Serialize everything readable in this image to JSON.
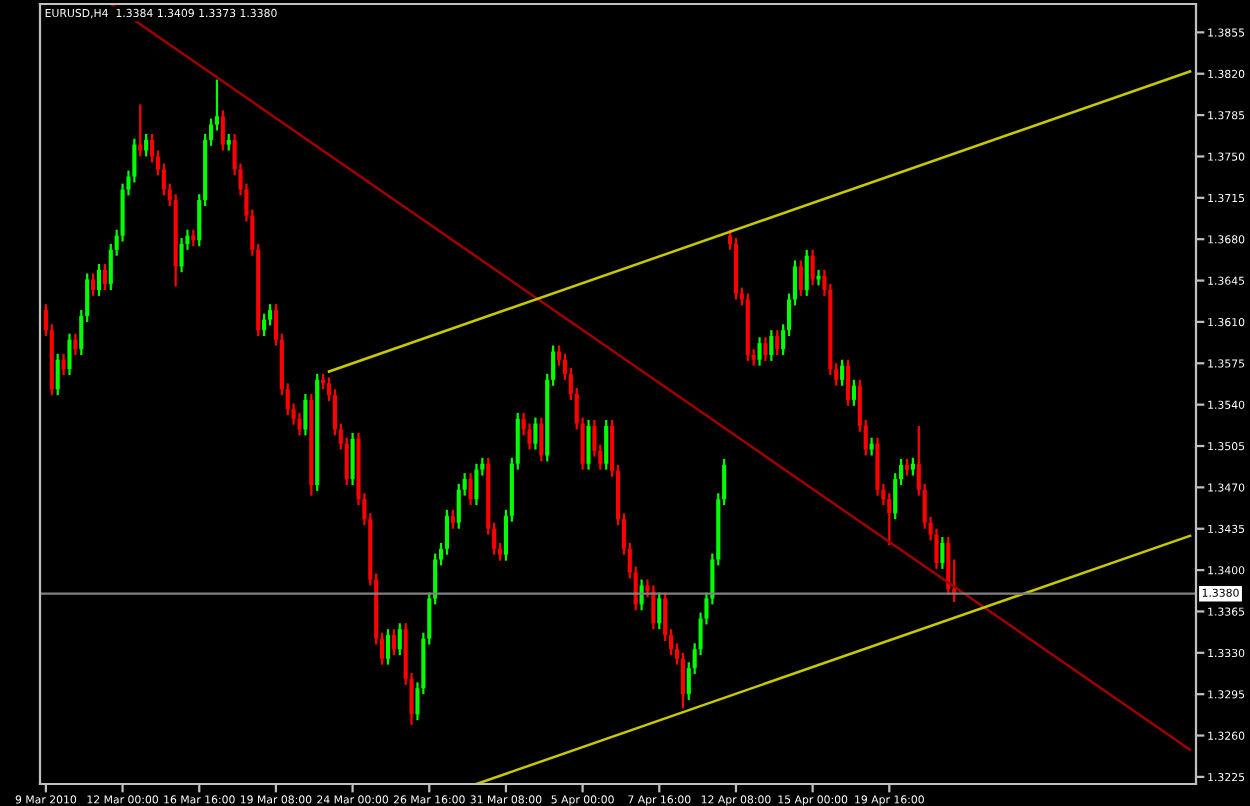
{
  "chart_data": {
    "type": "candlestick",
    "title": "EURUSD,H4  1.3384 1.3409 1.3373 1.3380",
    "categories": [
      "9 Mar 2010",
      null,
      null,
      null,
      null,
      null,
      null,
      null,
      null,
      null,
      null,
      null,
      null,
      "12 Mar 00:00",
      null,
      null,
      null,
      null,
      null,
      null,
      null,
      null,
      null,
      null,
      null,
      null,
      "16 Mar 16:00",
      null,
      null,
      null,
      null,
      null,
      null,
      null,
      null,
      null,
      null,
      null,
      null,
      "19 Mar 08:00",
      null,
      null,
      null,
      null,
      null,
      null,
      null,
      null,
      null,
      null,
      null,
      null,
      "24 Mar 00:00",
      null,
      null,
      null,
      null,
      null,
      null,
      null,
      null,
      null,
      null,
      null,
      null,
      "26 Mar 16:00",
      null,
      null,
      null,
      null,
      null,
      null,
      null,
      null,
      null,
      null,
      null,
      null,
      "31 Mar 08:00",
      null,
      null,
      null,
      null,
      null,
      null,
      null,
      null,
      null,
      null,
      null,
      null,
      "5 Apr 00:00",
      null,
      null,
      null,
      null,
      null,
      null,
      null,
      null,
      null,
      null,
      null,
      null,
      "7 Apr 16:00",
      null,
      null,
      null,
      null,
      null,
      null,
      null,
      null,
      null,
      null,
      null,
      null,
      "12 Apr 08:00",
      null,
      null,
      null,
      null,
      null,
      null,
      null,
      null,
      null,
      null,
      null,
      null,
      "15 Apr 00:00",
      null,
      null,
      null,
      null,
      null,
      null,
      null,
      null,
      null,
      null,
      null,
      null,
      "19 Apr 16:00",
      null,
      null,
      null,
      null,
      null,
      null,
      null,
      null,
      null,
      null,
      null,
      null,
      null,
      null,
      null,
      null,
      null,
      null,
      null,
      null,
      null,
      null,
      null,
      null,
      null,
      null,
      null,
      null,
      null,
      null,
      null,
      null,
      null,
      null,
      null,
      null,
      null,
      null,
      null,
      null,
      null,
      null,
      null,
      null,
      null,
      null,
      null,
      null,
      null,
      null,
      null
    ],
    "ohlc": [
      [
        1.362,
        1.3625,
        1.3598,
        1.3603
      ],
      [
        1.3603,
        1.3608,
        1.3548,
        1.3553
      ],
      [
        1.3553,
        1.3583,
        1.3548,
        1.3578
      ],
      [
        1.3578,
        1.3583,
        1.3565,
        1.357
      ],
      [
        1.357,
        1.36,
        1.3565,
        1.3595
      ],
      [
        1.3595,
        1.36,
        1.3582,
        1.3587
      ],
      [
        1.3587,
        1.362,
        1.3582,
        1.3615
      ],
      [
        1.3615,
        1.3651,
        1.361,
        1.3646
      ],
      [
        1.3646,
        1.3651,
        1.3632,
        1.3637
      ],
      [
        1.3637,
        1.3659,
        1.3632,
        1.3654
      ],
      [
        1.3654,
        1.3659,
        1.3637,
        1.3642
      ],
      [
        1.3642,
        1.3676,
        1.3637,
        1.3671
      ],
      [
        1.3671,
        1.3688,
        1.3666,
        1.3683
      ],
      [
        1.3683,
        1.3727,
        1.3678,
        1.3722
      ],
      [
        1.3722,
        1.3738,
        1.3717,
        1.3733
      ],
      [
        1.3733,
        1.3765,
        1.3728,
        1.376
      ],
      [
        1.376,
        1.3794,
        1.375,
        1.3755
      ],
      [
        1.3755,
        1.3769,
        1.375,
        1.3764
      ],
      [
        1.3764,
        1.3769,
        1.3745,
        1.375
      ],
      [
        1.375,
        1.3755,
        1.3734,
        1.3739
      ],
      [
        1.3739,
        1.3744,
        1.3717,
        1.3722
      ],
      [
        1.3722,
        1.3727,
        1.3708,
        1.3713
      ],
      [
        1.3713,
        1.3718,
        1.364,
        1.3657
      ],
      [
        1.3657,
        1.3681,
        1.3652,
        1.3676
      ],
      [
        1.3676,
        1.3688,
        1.3671,
        1.3683
      ],
      [
        1.3683,
        1.3688,
        1.3674,
        1.3679
      ],
      [
        1.3679,
        1.3718,
        1.3674,
        1.3713
      ],
      [
        1.3713,
        1.3769,
        1.3708,
        1.3764
      ],
      [
        1.3764,
        1.3782,
        1.3759,
        1.3777
      ],
      [
        1.3777,
        1.3815,
        1.3772,
        1.3784
      ],
      [
        1.3784,
        1.3789,
        1.3755,
        1.376
      ],
      [
        1.376,
        1.3769,
        1.3755,
        1.3764
      ],
      [
        1.3764,
        1.3769,
        1.3734,
        1.3739
      ],
      [
        1.3739,
        1.3744,
        1.3717,
        1.3722
      ],
      [
        1.3722,
        1.3727,
        1.3695,
        1.37
      ],
      [
        1.37,
        1.3705,
        1.3666,
        1.3671
      ],
      [
        1.3671,
        1.3676,
        1.3598,
        1.3603
      ],
      [
        1.3603,
        1.3617,
        1.3598,
        1.3612
      ],
      [
        1.3612,
        1.3625,
        1.3607,
        1.362
      ],
      [
        1.362,
        1.3625,
        1.359,
        1.3595
      ],
      [
        1.3595,
        1.36,
        1.3548,
        1.3553
      ],
      [
        1.3553,
        1.3558,
        1.3531,
        1.3536
      ],
      [
        1.3536,
        1.3541,
        1.3523,
        1.3528
      ],
      [
        1.3528,
        1.3533,
        1.3514,
        1.3519
      ],
      [
        1.3519,
        1.3549,
        1.3514,
        1.3544
      ],
      [
        1.3544,
        1.3549,
        1.3463,
        1.3472
      ],
      [
        1.3472,
        1.3566,
        1.3467,
        1.3561
      ],
      [
        1.3561,
        1.3566,
        1.3553,
        1.3558
      ],
      [
        1.3558,
        1.3563,
        1.3543,
        1.3548
      ],
      [
        1.3548,
        1.3553,
        1.3514,
        1.3519
      ],
      [
        1.3519,
        1.3524,
        1.3502,
        1.3507
      ],
      [
        1.3507,
        1.3512,
        1.3472,
        1.3477
      ],
      [
        1.3477,
        1.3516,
        1.3472,
        1.3511
      ],
      [
        1.3511,
        1.3516,
        1.3455,
        1.346
      ],
      [
        1.346,
        1.3465,
        1.3438,
        1.3443
      ],
      [
        1.3443,
        1.3448,
        1.3387,
        1.3392
      ],
      [
        1.3392,
        1.3397,
        1.3337,
        1.3342
      ],
      [
        1.3342,
        1.3347,
        1.332,
        1.3325
      ],
      [
        1.3325,
        1.335,
        1.332,
        1.3345
      ],
      [
        1.3345,
        1.335,
        1.3328,
        1.3333
      ],
      [
        1.3333,
        1.3355,
        1.3328,
        1.335
      ],
      [
        1.335,
        1.3355,
        1.3303,
        1.3308
      ],
      [
        1.3308,
        1.3313,
        1.3269,
        1.3278
      ],
      [
        1.3278,
        1.3305,
        1.3273,
        1.33
      ],
      [
        1.33,
        1.3347,
        1.3295,
        1.3342
      ],
      [
        1.3342,
        1.3381,
        1.3337,
        1.3376
      ],
      [
        1.3376,
        1.3414,
        1.3371,
        1.3409
      ],
      [
        1.3409,
        1.3423,
        1.3404,
        1.3418
      ],
      [
        1.3418,
        1.3451,
        1.3413,
        1.3446
      ],
      [
        1.3446,
        1.3451,
        1.3435,
        1.344
      ],
      [
        1.344,
        1.3473,
        1.3435,
        1.3468
      ],
      [
        1.3468,
        1.3482,
        1.3463,
        1.3477
      ],
      [
        1.3477,
        1.3482,
        1.3455,
        1.346
      ],
      [
        1.346,
        1.349,
        1.3455,
        1.3485
      ],
      [
        1.3485,
        1.3495,
        1.348,
        1.349
      ],
      [
        1.349,
        1.3495,
        1.343,
        1.3435
      ],
      [
        1.3435,
        1.344,
        1.3413,
        1.3418
      ],
      [
        1.3418,
        1.3423,
        1.3408,
        1.3413
      ],
      [
        1.3413,
        1.3451,
        1.3408,
        1.3446
      ],
      [
        1.3446,
        1.3495,
        1.3441,
        1.349
      ],
      [
        1.349,
        1.3533,
        1.3485,
        1.3528
      ],
      [
        1.3528,
        1.3533,
        1.3514,
        1.3519
      ],
      [
        1.3519,
        1.3524,
        1.3502,
        1.3507
      ],
      [
        1.3507,
        1.3529,
        1.3502,
        1.3524
      ],
      [
        1.3524,
        1.3529,
        1.3492,
        1.3497
      ],
      [
        1.3497,
        1.3566,
        1.3492,
        1.3561
      ],
      [
        1.3561,
        1.359,
        1.3556,
        1.3585
      ],
      [
        1.3585,
        1.359,
        1.3573,
        1.3578
      ],
      [
        1.3578,
        1.3583,
        1.3561,
        1.3566
      ],
      [
        1.3566,
        1.3571,
        1.3544,
        1.3549
      ],
      [
        1.3549,
        1.3554,
        1.3519,
        1.3524
      ],
      [
        1.3524,
        1.3529,
        1.3485,
        1.349
      ],
      [
        1.349,
        1.3527,
        1.3485,
        1.3522
      ],
      [
        1.3522,
        1.3527,
        1.3496,
        1.3501
      ],
      [
        1.3501,
        1.3506,
        1.3485,
        1.349
      ],
      [
        1.349,
        1.3527,
        1.3485,
        1.3522
      ],
      [
        1.3522,
        1.3527,
        1.3479,
        1.3484
      ],
      [
        1.3484,
        1.3489,
        1.3438,
        1.3443
      ],
      [
        1.3443,
        1.3448,
        1.3413,
        1.3418
      ],
      [
        1.3418,
        1.3423,
        1.3393,
        1.3398
      ],
      [
        1.3398,
        1.3403,
        1.3366,
        1.3371
      ],
      [
        1.3371,
        1.3392,
        1.3366,
        1.3387
      ],
      [
        1.3387,
        1.3392,
        1.3377,
        1.3382
      ],
      [
        1.3382,
        1.3387,
        1.335,
        1.3355
      ],
      [
        1.3355,
        1.3381,
        1.335,
        1.3376
      ],
      [
        1.3376,
        1.3381,
        1.334,
        1.3345
      ],
      [
        1.3345,
        1.335,
        1.3328,
        1.3333
      ],
      [
        1.3333,
        1.3338,
        1.332,
        1.3325
      ],
      [
        1.3325,
        1.333,
        1.3283,
        1.3295
      ],
      [
        1.3295,
        1.3322,
        1.329,
        1.3317
      ],
      [
        1.3317,
        1.3338,
        1.3312,
        1.3333
      ],
      [
        1.3333,
        1.3364,
        1.3328,
        1.3359
      ],
      [
        1.3359,
        1.3381,
        1.3354,
        1.3376
      ],
      [
        1.3376,
        1.3414,
        1.3371,
        1.3409
      ],
      [
        1.3409,
        1.3465,
        1.3404,
        1.346
      ],
      [
        1.346,
        1.3494,
        1.3455,
        1.3489
      ],
      [
        1.3683,
        1.3688,
        1.3671,
        1.3676
      ],
      [
        1.3676,
        1.3681,
        1.3629,
        1.3634
      ],
      [
        1.3634,
        1.3639,
        1.3624,
        1.3629
      ],
      [
        1.3629,
        1.3634,
        1.3577,
        1.3582
      ],
      [
        1.3582,
        1.3587,
        1.3573,
        1.3578
      ],
      [
        1.3578,
        1.3597,
        1.3573,
        1.3592
      ],
      [
        1.3592,
        1.3597,
        1.3577,
        1.3582
      ],
      [
        1.3582,
        1.3603,
        1.3577,
        1.3598
      ],
      [
        1.3598,
        1.3603,
        1.3582,
        1.3587
      ],
      [
        1.3587,
        1.3608,
        1.3582,
        1.3603
      ],
      [
        1.3603,
        1.3634,
        1.3598,
        1.3629
      ],
      [
        1.3629,
        1.3662,
        1.3624,
        1.3657
      ],
      [
        1.3657,
        1.3662,
        1.3632,
        1.3637
      ],
      [
        1.3637,
        1.3671,
        1.3632,
        1.3666
      ],
      [
        1.3666,
        1.3671,
        1.3641,
        1.3646
      ],
      [
        1.3646,
        1.3654,
        1.3641,
        1.3649
      ],
      [
        1.3649,
        1.3654,
        1.3632,
        1.3637
      ],
      [
        1.3637,
        1.3642,
        1.3565,
        1.357
      ],
      [
        1.357,
        1.3575,
        1.3556,
        1.3561
      ],
      [
        1.3561,
        1.3578,
        1.3556,
        1.3573
      ],
      [
        1.3573,
        1.3578,
        1.3539,
        1.3544
      ],
      [
        1.3544,
        1.3561,
        1.3539,
        1.3556
      ],
      [
        1.3556,
        1.3561,
        1.3517,
        1.3522
      ],
      [
        1.3522,
        1.3527,
        1.3497,
        1.3502
      ],
      [
        1.3502,
        1.3512,
        1.3497,
        1.3507
      ],
      [
        1.3507,
        1.3512,
        1.3463,
        1.3468
      ],
      [
        1.3468,
        1.3473,
        1.3455,
        1.346
      ],
      [
        1.346,
        1.3465,
        1.3421,
        1.3448
      ],
      [
        1.3448,
        1.3482,
        1.3443,
        1.3477
      ],
      [
        1.3477,
        1.3494,
        1.3472,
        1.3489
      ],
      [
        1.3489,
        1.3494,
        1.348,
        1.3485
      ],
      [
        1.3485,
        1.3495,
        1.348,
        1.349
      ],
      [
        1.349,
        1.3522,
        1.3463,
        1.3468
      ],
      [
        1.3468,
        1.3473,
        1.3435,
        1.344
      ],
      [
        1.344,
        1.3445,
        1.3425,
        1.343
      ],
      [
        1.343,
        1.3435,
        1.3401,
        1.3406
      ],
      [
        1.3406,
        1.3428,
        1.3401,
        1.3423
      ],
      [
        1.3423,
        1.3428,
        1.3379,
        1.3384
      ],
      [
        1.3384,
        1.3409,
        1.3373,
        1.338
      ],
      null,
      null,
      null,
      null,
      null,
      null,
      null,
      null,
      null,
      null,
      null,
      null,
      null,
      null,
      null,
      null,
      null,
      null,
      null,
      null,
      null,
      null,
      null,
      null,
      null,
      null,
      null,
      null,
      null,
      null,
      null,
      null,
      null,
      null,
      null,
      null,
      null,
      null,
      null,
      null
    ],
    "series": [
      {
        "type": "line",
        "color": "#a00000",
        "values": [
          null,
          null,
          null,
          null,
          null,
          null,
          null,
          null,
          null,
          null,
          null,
          1.3879,
          null,
          null,
          null,
          null,
          null,
          null,
          null,
          null,
          null,
          null,
          null,
          null,
          null,
          null,
          null,
          null,
          null,
          null,
          null,
          null,
          null,
          null,
          null,
          null,
          null,
          null,
          null,
          null,
          null,
          null,
          null,
          null,
          null,
          null,
          null,
          null,
          null,
          null,
          null,
          null,
          null,
          null,
          null,
          null,
          null,
          null,
          null,
          null,
          null,
          null,
          null,
          null,
          null,
          null,
          null,
          null,
          null,
          null,
          null,
          null,
          null,
          null,
          null,
          null,
          null,
          null,
          null,
          null,
          null,
          null,
          null,
          null,
          null,
          null,
          null,
          null,
          null,
          null,
          null,
          null,
          null,
          null,
          null,
          null,
          null,
          null,
          null,
          null,
          null,
          null,
          null,
          null,
          null,
          null,
          null,
          null,
          null,
          null,
          null,
          null,
          null,
          null,
          null,
          null,
          null,
          null,
          null,
          null,
          null,
          null,
          null,
          null,
          null,
          null,
          null,
          null,
          null,
          null,
          null,
          null,
          null,
          null,
          null,
          null,
          null,
          null,
          null,
          null,
          null,
          null,
          null,
          null,
          null,
          null,
          null,
          null,
          null,
          null,
          null,
          null,
          null,
          null,
          null,
          null,
          null,
          null,
          null,
          null,
          null,
          null,
          null,
          null,
          null,
          null,
          null,
          null,
          null,
          null,
          null,
          null,
          null,
          null,
          null,
          null,
          null,
          null,
          null,
          null,
          null,
          null,
          null,
          null,
          null,
          null,
          null,
          null,
          null,
          null,
          null,
          null,
          null,
          null,
          1.3248
        ]
      },
      {
        "type": "line",
        "color": "#c8c800",
        "values": [
          null,
          null,
          null,
          null,
          null,
          null,
          null,
          null,
          null,
          null,
          null,
          null,
          null,
          null,
          null,
          null,
          null,
          null,
          null,
          null,
          null,
          null,
          null,
          null,
          null,
          null,
          null,
          null,
          null,
          null,
          null,
          null,
          null,
          null,
          null,
          null,
          null,
          null,
          null,
          null,
          null,
          null,
          null,
          null,
          null,
          null,
          null,
          null,
          1.3568,
          null,
          null,
          null,
          null,
          null,
          null,
          null,
          null,
          null,
          null,
          null,
          null,
          null,
          null,
          null,
          null,
          null,
          null,
          null,
          null,
          null,
          null,
          null,
          null,
          null,
          null,
          null,
          null,
          null,
          null,
          null,
          null,
          null,
          null,
          null,
          null,
          null,
          null,
          null,
          null,
          null,
          null,
          null,
          null,
          null,
          null,
          null,
          null,
          null,
          null,
          null,
          null,
          null,
          null,
          null,
          null,
          null,
          null,
          null,
          null,
          null,
          null,
          null,
          null,
          null,
          null,
          null,
          null,
          null,
          null,
          null,
          null,
          null,
          null,
          null,
          null,
          null,
          null,
          null,
          null,
          null,
          null,
          null,
          null,
          null,
          null,
          null,
          null,
          null,
          null,
          null,
          null,
          null,
          null,
          null,
          null,
          null,
          null,
          null,
          null,
          null,
          null,
          null,
          null,
          null,
          null,
          null,
          null,
          null,
          null,
          null,
          null,
          null,
          null,
          null,
          null,
          null,
          null,
          null,
          null,
          null,
          null,
          null,
          null,
          null,
          null,
          null,
          null,
          null,
          null,
          null,
          null,
          null,
          null,
          null,
          null,
          null,
          null,
          null,
          null,
          null,
          null,
          null,
          null,
          null,
          1.3822
        ]
      },
      {
        "type": "line",
        "color": "#c8c800",
        "values": [
          null,
          null,
          null,
          null,
          null,
          null,
          null,
          null,
          null,
          null,
          null,
          null,
          null,
          null,
          null,
          null,
          null,
          null,
          null,
          null,
          null,
          null,
          null,
          null,
          null,
          null,
          null,
          null,
          null,
          null,
          null,
          null,
          null,
          null,
          null,
          null,
          null,
          null,
          null,
          null,
          null,
          null,
          null,
          null,
          null,
          null,
          null,
          null,
          null,
          null,
          null,
          null,
          null,
          null,
          null,
          null,
          null,
          null,
          null,
          null,
          null,
          null,
          null,
          null,
          null,
          null,
          null,
          null,
          null,
          null,
          null,
          null,
          null,
          1.3219,
          null,
          null,
          null,
          null,
          null,
          null,
          null,
          null,
          null,
          null,
          null,
          null,
          null,
          null,
          null,
          null,
          null,
          null,
          null,
          null,
          null,
          null,
          null,
          null,
          null,
          null,
          null,
          null,
          null,
          null,
          null,
          null,
          null,
          null,
          null,
          null,
          null,
          null,
          null,
          null,
          null,
          null,
          null,
          null,
          null,
          null,
          null,
          null,
          null,
          null,
          null,
          null,
          null,
          null,
          null,
          null,
          null,
          null,
          null,
          null,
          null,
          null,
          null,
          null,
          null,
          null,
          null,
          null,
          null,
          null,
          null,
          null,
          null,
          null,
          null,
          null,
          null,
          null,
          null,
          null,
          null,
          null,
          null,
          null,
          null,
          null,
          null,
          null,
          null,
          null,
          null,
          null,
          null,
          null,
          null,
          null,
          null,
          null,
          null,
          null,
          null,
          null,
          null,
          null,
          null,
          null,
          null,
          null,
          null,
          null,
          null,
          null,
          null,
          null,
          null,
          null,
          null,
          null,
          null,
          null,
          1.3429
        ]
      }
    ],
    "ylim": [
      1.3219,
      1.3879
    ],
    "yticks": [
      1.3855,
      {
        "value": 1.382,
        "label": "1.3820"
      },
      1.3785,
      {
        "value": 1.375,
        "label": "1.3750"
      },
      1.3715,
      {
        "value": 1.368,
        "label": "1.3680"
      },
      1.3645,
      {
        "value": 1.361,
        "label": "1.3610"
      },
      1.3575,
      {
        "value": 1.354,
        "label": "1.3540"
      },
      1.3505,
      {
        "value": 1.347,
        "label": "1.3470"
      },
      1.3435,
      {
        "value": 1.34,
        "label": "1.3400"
      },
      1.3365,
      {
        "value": 1.333,
        "label": "1.3330"
      },
      1.3295,
      {
        "value": 1.326,
        "label": "1.3260"
      },
      1.3225
    ],
    "ref_lines": [
      {
        "axis": "y",
        "value": 1.338,
        "label": "1.3380",
        "color": "#808080"
      }
    ],
    "grid": false
  }
}
